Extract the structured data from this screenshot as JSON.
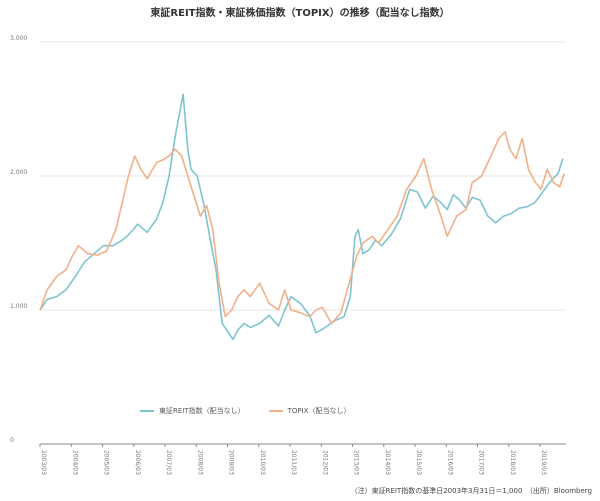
{
  "title": "東証REIT指数・東証株価指数（TOPIX）の推移（配当なし指数）",
  "note": "（注）東証REIT指数の基準日2003年3月31日＝1,000　（出所）Bloomberg",
  "colors": {
    "reit": "#7ec4d0",
    "topix": "#f1b08a",
    "grid": "#e6e6e6",
    "axis": "#888888"
  },
  "chart_data": {
    "type": "line",
    "title": "東証REIT指数・東証株価指数（TOPIX）の推移（配当なし指数）",
    "xlabel": "",
    "ylabel": "",
    "ylim": [
      0,
      3000
    ],
    "yticks": [
      0,
      1000,
      2000,
      3000
    ],
    "ytick_labels": [
      "0",
      "1,000",
      "2,000",
      "3,000"
    ],
    "xtick_labels": [
      "2003/03",
      "2004/03",
      "2005/03",
      "2006/03",
      "2007/03",
      "2008/03",
      "2009/03",
      "2010/03",
      "2011/03",
      "2012/03",
      "2013/03",
      "2014/03",
      "2015/03",
      "2016/03",
      "2017/03",
      "2018/03",
      "2019/03"
    ],
    "xlim": [
      2003.17,
      2020.0
    ],
    "grid": true,
    "legend_position": "bottom-left",
    "series": [
      {
        "name": "東証REIT指数（配当なし）",
        "color": "#7ec4d0",
        "points": [
          [
            2003.17,
            1000
          ],
          [
            2003.4,
            1080
          ],
          [
            2003.7,
            1100
          ],
          [
            2004.0,
            1150
          ],
          [
            2004.3,
            1250
          ],
          [
            2004.6,
            1360
          ],
          [
            2004.9,
            1420
          ],
          [
            2005.2,
            1480
          ],
          [
            2005.5,
            1480
          ],
          [
            2005.8,
            1520
          ],
          [
            2006.0,
            1560
          ],
          [
            2006.3,
            1640
          ],
          [
            2006.6,
            1580
          ],
          [
            2006.9,
            1680
          ],
          [
            2007.1,
            1800
          ],
          [
            2007.3,
            2000
          ],
          [
            2007.5,
            2300
          ],
          [
            2007.7,
            2550
          ],
          [
            2007.75,
            2610
          ],
          [
            2007.9,
            2200
          ],
          [
            2008.0,
            2050
          ],
          [
            2008.2,
            2000
          ],
          [
            2008.4,
            1800
          ],
          [
            2008.6,
            1550
          ],
          [
            2008.8,
            1300
          ],
          [
            2009.0,
            900
          ],
          [
            2009.2,
            830
          ],
          [
            2009.35,
            780
          ],
          [
            2009.5,
            850
          ],
          [
            2009.7,
            900
          ],
          [
            2009.9,
            870
          ],
          [
            2010.2,
            900
          ],
          [
            2010.5,
            960
          ],
          [
            2010.8,
            880
          ],
          [
            2011.0,
            1000
          ],
          [
            2011.2,
            1100
          ],
          [
            2011.5,
            1050
          ],
          [
            2011.8,
            960
          ],
          [
            2012.0,
            830
          ],
          [
            2012.3,
            870
          ],
          [
            2012.6,
            920
          ],
          [
            2012.9,
            950
          ],
          [
            2013.1,
            1100
          ],
          [
            2013.25,
            1550
          ],
          [
            2013.35,
            1600
          ],
          [
            2013.5,
            1420
          ],
          [
            2013.7,
            1450
          ],
          [
            2013.9,
            1520
          ],
          [
            2014.1,
            1480
          ],
          [
            2014.4,
            1560
          ],
          [
            2014.7,
            1680
          ],
          [
            2015.0,
            1900
          ],
          [
            2015.25,
            1880
          ],
          [
            2015.5,
            1760
          ],
          [
            2015.75,
            1850
          ],
          [
            2016.0,
            1800
          ],
          [
            2016.2,
            1750
          ],
          [
            2016.4,
            1860
          ],
          [
            2016.6,
            1820
          ],
          [
            2016.8,
            1760
          ],
          [
            2017.0,
            1840
          ],
          [
            2017.25,
            1820
          ],
          [
            2017.5,
            1700
          ],
          [
            2017.75,
            1650
          ],
          [
            2018.0,
            1700
          ],
          [
            2018.25,
            1720
          ],
          [
            2018.5,
            1760
          ],
          [
            2018.75,
            1770
          ],
          [
            2019.0,
            1800
          ],
          [
            2019.25,
            1880
          ],
          [
            2019.5,
            1960
          ],
          [
            2019.75,
            2020
          ],
          [
            2019.9,
            2130
          ]
        ]
      },
      {
        "name": "TOPIX（配当なし）",
        "color": "#f1b08a",
        "points": [
          [
            2003.17,
            1000
          ],
          [
            2003.4,
            1150
          ],
          [
            2003.7,
            1250
          ],
          [
            2004.0,
            1300
          ],
          [
            2004.2,
            1400
          ],
          [
            2004.4,
            1480
          ],
          [
            2004.7,
            1420
          ],
          [
            2005.0,
            1410
          ],
          [
            2005.3,
            1440
          ],
          [
            2005.6,
            1600
          ],
          [
            2005.8,
            1800
          ],
          [
            2006.0,
            2000
          ],
          [
            2006.2,
            2150
          ],
          [
            2006.4,
            2050
          ],
          [
            2006.6,
            1980
          ],
          [
            2006.9,
            2100
          ],
          [
            2007.1,
            2120
          ],
          [
            2007.3,
            2150
          ],
          [
            2007.5,
            2200
          ],
          [
            2007.7,
            2150
          ],
          [
            2007.9,
            2000
          ],
          [
            2008.1,
            1850
          ],
          [
            2008.3,
            1700
          ],
          [
            2008.5,
            1780
          ],
          [
            2008.7,
            1600
          ],
          [
            2008.9,
            1200
          ],
          [
            2009.1,
            950
          ],
          [
            2009.3,
            1000
          ],
          [
            2009.5,
            1100
          ],
          [
            2009.7,
            1150
          ],
          [
            2009.9,
            1100
          ],
          [
            2010.2,
            1200
          ],
          [
            2010.5,
            1050
          ],
          [
            2010.8,
            1000
          ],
          [
            2011.0,
            1150
          ],
          [
            2011.2,
            1000
          ],
          [
            2011.5,
            980
          ],
          [
            2011.8,
            950
          ],
          [
            2012.0,
            1000
          ],
          [
            2012.2,
            1020
          ],
          [
            2012.5,
            900
          ],
          [
            2012.8,
            980
          ],
          [
            2013.0,
            1150
          ],
          [
            2013.3,
            1400
          ],
          [
            2013.5,
            1500
          ],
          [
            2013.8,
            1550
          ],
          [
            2014.0,
            1500
          ],
          [
            2014.3,
            1600
          ],
          [
            2014.6,
            1700
          ],
          [
            2014.9,
            1900
          ],
          [
            2015.2,
            2000
          ],
          [
            2015.45,
            2130
          ],
          [
            2015.7,
            1900
          ],
          [
            2016.0,
            1700
          ],
          [
            2016.2,
            1550
          ],
          [
            2016.5,
            1700
          ],
          [
            2016.8,
            1750
          ],
          [
            2017.0,
            1950
          ],
          [
            2017.3,
            2000
          ],
          [
            2017.6,
            2150
          ],
          [
            2017.85,
            2280
          ],
          [
            2018.05,
            2330
          ],
          [
            2018.2,
            2200
          ],
          [
            2018.4,
            2130
          ],
          [
            2018.6,
            2280
          ],
          [
            2018.8,
            2050
          ],
          [
            2019.0,
            1960
          ],
          [
            2019.2,
            1900
          ],
          [
            2019.4,
            2050
          ],
          [
            2019.6,
            1950
          ],
          [
            2019.8,
            1920
          ],
          [
            2019.95,
            2020
          ]
        ]
      }
    ]
  }
}
